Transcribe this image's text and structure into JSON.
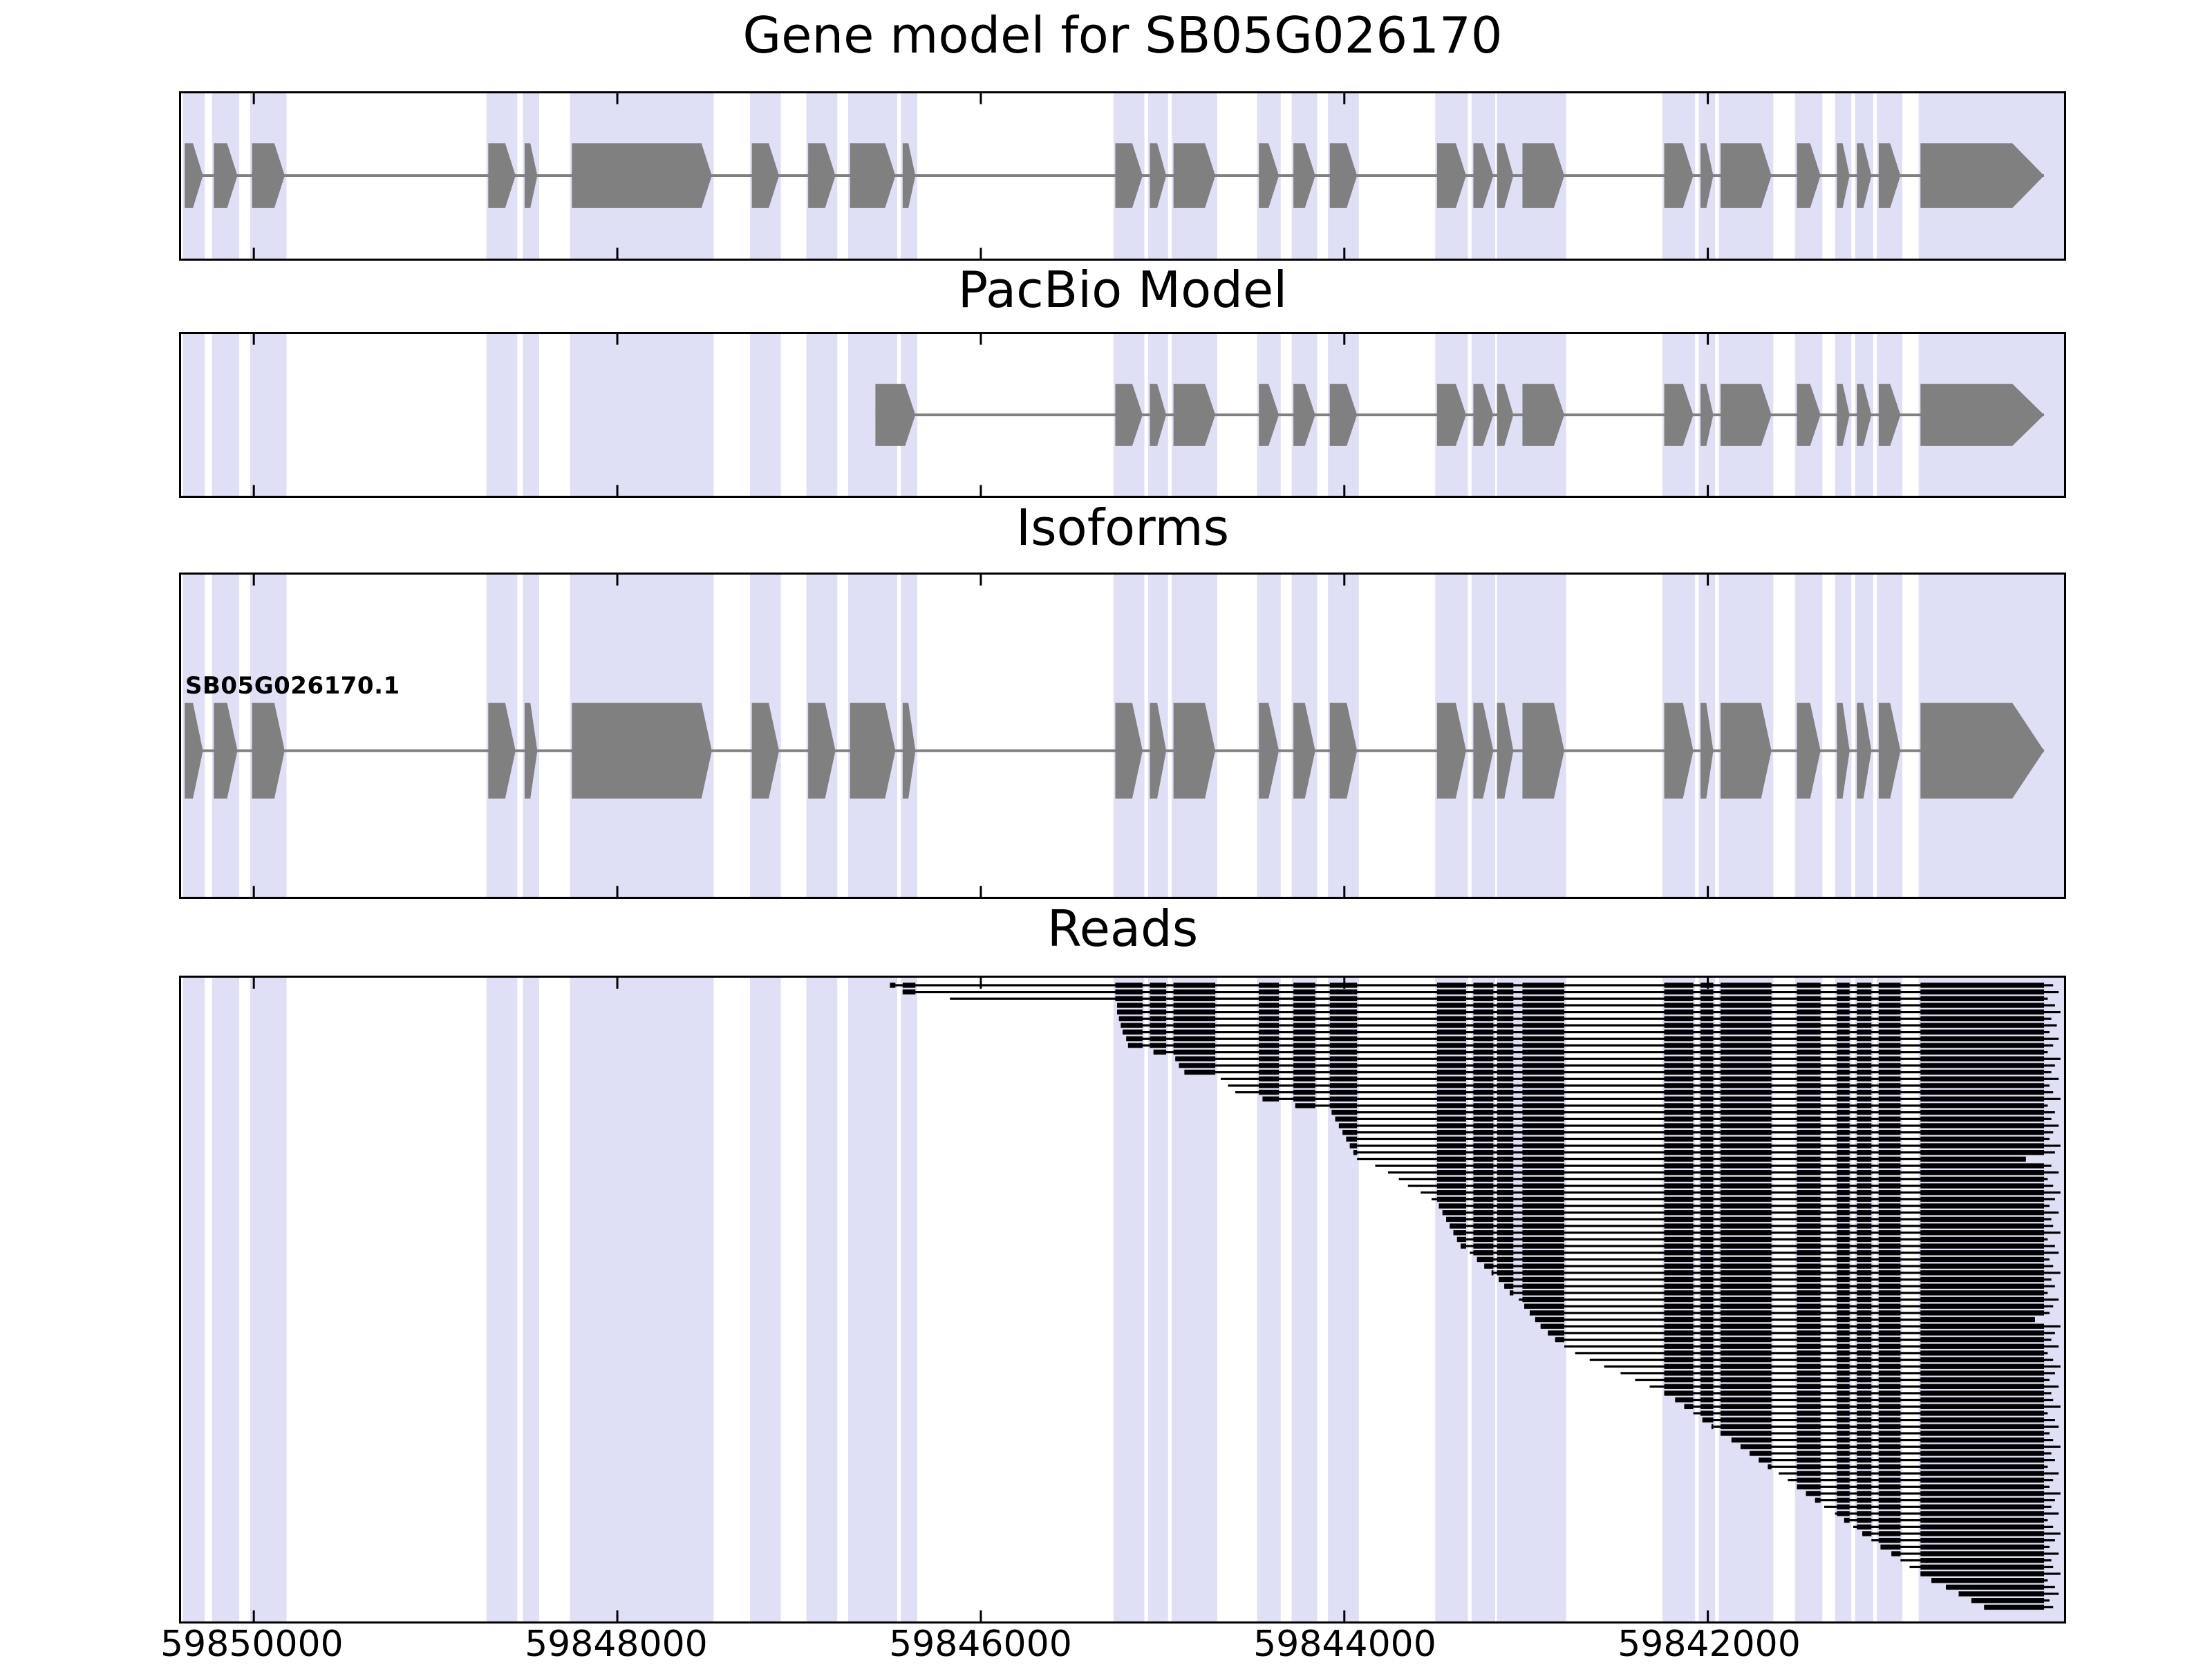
{
  "colors": {
    "band": "#dfdff6",
    "exon": "#808080",
    "read": "#000000",
    "border": "#000000",
    "text": "#000000"
  },
  "chart_data": {
    "type": "genome-tracks",
    "title": "Gene model for SB05G026170",
    "xlabel": "",
    "ylabel": "",
    "x_axis": {
      "left_coord": 59850400,
      "right_coord": 59840040,
      "direction": "decreasing",
      "ticks": [
        59850000,
        59848000,
        59846000,
        59844000,
        59842000
      ]
    },
    "highlight_bands": [
      [
        59850390,
        59850270
      ],
      [
        59850230,
        59850080
      ],
      [
        59850020,
        59849820
      ],
      [
        59848720,
        59848550
      ],
      [
        59848520,
        59848430
      ],
      [
        59848260,
        59847470
      ],
      [
        59847270,
        59847100
      ],
      [
        59846960,
        59846790
      ],
      [
        59846730,
        59846460
      ],
      [
        59846440,
        59846350
      ],
      [
        59845270,
        59845100
      ],
      [
        59845080,
        59844970
      ],
      [
        59844950,
        59844700
      ],
      [
        59844480,
        59844350
      ],
      [
        59844290,
        59844150
      ],
      [
        59844090,
        59843920
      ],
      [
        59843500,
        59843320
      ],
      [
        59843300,
        59843170
      ],
      [
        59843160,
        59842780
      ],
      [
        59842250,
        59842070
      ],
      [
        59842050,
        59841960
      ],
      [
        59841940,
        59841640
      ],
      [
        59841520,
        59841370
      ],
      [
        59841300,
        59841210
      ],
      [
        59841190,
        59841090
      ],
      [
        59841070,
        59840930
      ],
      [
        59840840,
        59840040
      ]
    ],
    "tracks": {
      "gene_model": {
        "title": "Gene model for SB05G026170",
        "exons": [
          [
            59850380,
            59850280
          ],
          [
            59850220,
            59850090
          ],
          [
            59850010,
            59849830
          ],
          [
            59848710,
            59848560
          ],
          [
            59848510,
            59848440
          ],
          [
            59848250,
            59847480
          ],
          [
            59847260,
            59847110
          ],
          [
            59846950,
            59846800
          ],
          [
            59846720,
            59846470
          ],
          [
            59846430,
            59846360
          ],
          [
            59845260,
            59845110
          ],
          [
            59845070,
            59844980
          ],
          [
            59844940,
            59844710
          ],
          [
            59844470,
            59844360
          ],
          [
            59844280,
            59844160
          ],
          [
            59844080,
            59843930
          ],
          [
            59843490,
            59843330
          ],
          [
            59843290,
            59843180
          ],
          [
            59843160,
            59843070
          ],
          [
            59843020,
            59842790
          ],
          [
            59842240,
            59842080
          ],
          [
            59842040,
            59841970
          ],
          [
            59841930,
            59841650
          ],
          [
            59841510,
            59841380
          ],
          [
            59841290,
            59841220
          ],
          [
            59841180,
            59841100
          ],
          [
            59841060,
            59840940
          ],
          [
            59840830,
            59840150
          ]
        ]
      },
      "pacbio": {
        "title": "PacBio Model",
        "exons": [
          [
            59846580,
            59846360
          ],
          [
            59845260,
            59845110
          ],
          [
            59845070,
            59844980
          ],
          [
            59844940,
            59844710
          ],
          [
            59844470,
            59844360
          ],
          [
            59844280,
            59844160
          ],
          [
            59844080,
            59843930
          ],
          [
            59843490,
            59843330
          ],
          [
            59843290,
            59843180
          ],
          [
            59843160,
            59843070
          ],
          [
            59843020,
            59842790
          ],
          [
            59842240,
            59842080
          ],
          [
            59842040,
            59841970
          ],
          [
            59841930,
            59841650
          ],
          [
            59841510,
            59841380
          ],
          [
            59841290,
            59841220
          ],
          [
            59841180,
            59841100
          ],
          [
            59841060,
            59840940
          ],
          [
            59840830,
            59840150
          ]
        ]
      },
      "isoforms": {
        "title": "Isoforms",
        "items": [
          {
            "label": "SB05G026170.1",
            "exons": [
              [
                59850380,
                59850280
              ],
              [
                59850220,
                59850090
              ],
              [
                59850010,
                59849830
              ],
              [
                59848710,
                59848560
              ],
              [
                59848510,
                59848440
              ],
              [
                59848250,
                59847480
              ],
              [
                59847260,
                59847110
              ],
              [
                59846950,
                59846800
              ],
              [
                59846720,
                59846470
              ],
              [
                59846430,
                59846360
              ],
              [
                59845260,
                59845110
              ],
              [
                59845070,
                59844980
              ],
              [
                59844940,
                59844710
              ],
              [
                59844470,
                59844360
              ],
              [
                59844280,
                59844160
              ],
              [
                59844080,
                59843930
              ],
              [
                59843490,
                59843330
              ],
              [
                59843290,
                59843180
              ],
              [
                59843160,
                59843070
              ],
              [
                59843020,
                59842790
              ],
              [
                59842240,
                59842080
              ],
              [
                59842040,
                59841970
              ],
              [
                59841930,
                59841650
              ],
              [
                59841510,
                59841380
              ],
              [
                59841290,
                59841220
              ],
              [
                59841180,
                59841100
              ],
              [
                59841060,
                59840940
              ],
              [
                59840830,
                59840150
              ]
            ]
          }
        ]
      },
      "reads": {
        "title": "Reads",
        "reads": [
          [
            59846500,
            59840100
          ],
          [
            59846430,
            59840070
          ],
          [
            59846170,
            59840130
          ],
          [
            59845250,
            59840090
          ],
          [
            59845250,
            59840060
          ],
          [
            59845240,
            59840110
          ],
          [
            59845230,
            59840080
          ],
          [
            59845220,
            59840120
          ],
          [
            59845200,
            59840070
          ],
          [
            59845190,
            59840100
          ],
          [
            59845050,
            59840130
          ],
          [
            59844930,
            59840060
          ],
          [
            59844910,
            59840090
          ],
          [
            59844880,
            59840110
          ],
          [
            59844680,
            59840070
          ],
          [
            59844640,
            59840120
          ],
          [
            59844600,
            59840100
          ],
          [
            59844450,
            59840060
          ],
          [
            59844270,
            59840130
          ],
          [
            59844070,
            59840090
          ],
          [
            59844050,
            59840110
          ],
          [
            59844030,
            59840070
          ],
          [
            59844010,
            59840100
          ],
          [
            59843990,
            59840120
          ],
          [
            59843970,
            59840060
          ],
          [
            59843950,
            59840090
          ],
          [
            59843930,
            59840250
          ],
          [
            59843830,
            59840110
          ],
          [
            59843760,
            59840070
          ],
          [
            59843700,
            59840130
          ],
          [
            59843650,
            59840100
          ],
          [
            59843580,
            59840060
          ],
          [
            59843520,
            59840090
          ],
          [
            59843480,
            59840120
          ],
          [
            59843460,
            59840070
          ],
          [
            59843440,
            59840110
          ],
          [
            59843420,
            59840100
          ],
          [
            59843400,
            59840060
          ],
          [
            59843380,
            59840130
          ],
          [
            59843360,
            59840090
          ],
          [
            59843310,
            59840070
          ],
          [
            59843270,
            59840120
          ],
          [
            59843230,
            59840100
          ],
          [
            59843190,
            59840060
          ],
          [
            59843150,
            59840110
          ],
          [
            59843120,
            59840090
          ],
          [
            59843090,
            59840130
          ],
          [
            59843040,
            59840070
          ],
          [
            59843010,
            59840100
          ],
          [
            59842980,
            59840120
          ],
          [
            59842950,
            59840200
          ],
          [
            59842920,
            59840060
          ],
          [
            59842880,
            59840090
          ],
          [
            59842840,
            59840110
          ],
          [
            59842790,
            59840070
          ],
          [
            59842730,
            59840130
          ],
          [
            59842650,
            59840100
          ],
          [
            59842570,
            59840060
          ],
          [
            59842480,
            59840090
          ],
          [
            59842400,
            59840120
          ],
          [
            59842320,
            59840070
          ],
          [
            59842240,
            59840110
          ],
          [
            59842180,
            59840100
          ],
          [
            59842130,
            59840060
          ],
          [
            59842080,
            59840130
          ],
          [
            59842030,
            59840090
          ],
          [
            59841980,
            59840070
          ],
          [
            59841930,
            59840120
          ],
          [
            59841870,
            59840100
          ],
          [
            59841820,
            59840060
          ],
          [
            59841770,
            59840110
          ],
          [
            59841720,
            59840090
          ],
          [
            59841670,
            59840130
          ],
          [
            59841610,
            59840070
          ],
          [
            59841560,
            59840100
          ],
          [
            59841510,
            59840120
          ],
          [
            59841460,
            59840060
          ],
          [
            59841410,
            59840090
          ],
          [
            59841360,
            59840110
          ],
          [
            59841300,
            59840070
          ],
          [
            59841250,
            59840130
          ],
          [
            59841200,
            59840100
          ],
          [
            59841150,
            59840060
          ],
          [
            59841100,
            59840090
          ],
          [
            59841050,
            59840120
          ],
          [
            59840990,
            59840070
          ],
          [
            59840940,
            59840110
          ],
          [
            59840890,
            59840100
          ],
          [
            59840830,
            59840060
          ],
          [
            59840770,
            59840130
          ],
          [
            59840690,
            59840090
          ],
          [
            59840620,
            59840070
          ],
          [
            59840550,
            59840120
          ],
          [
            59840480,
            59840100
          ]
        ]
      }
    }
  }
}
